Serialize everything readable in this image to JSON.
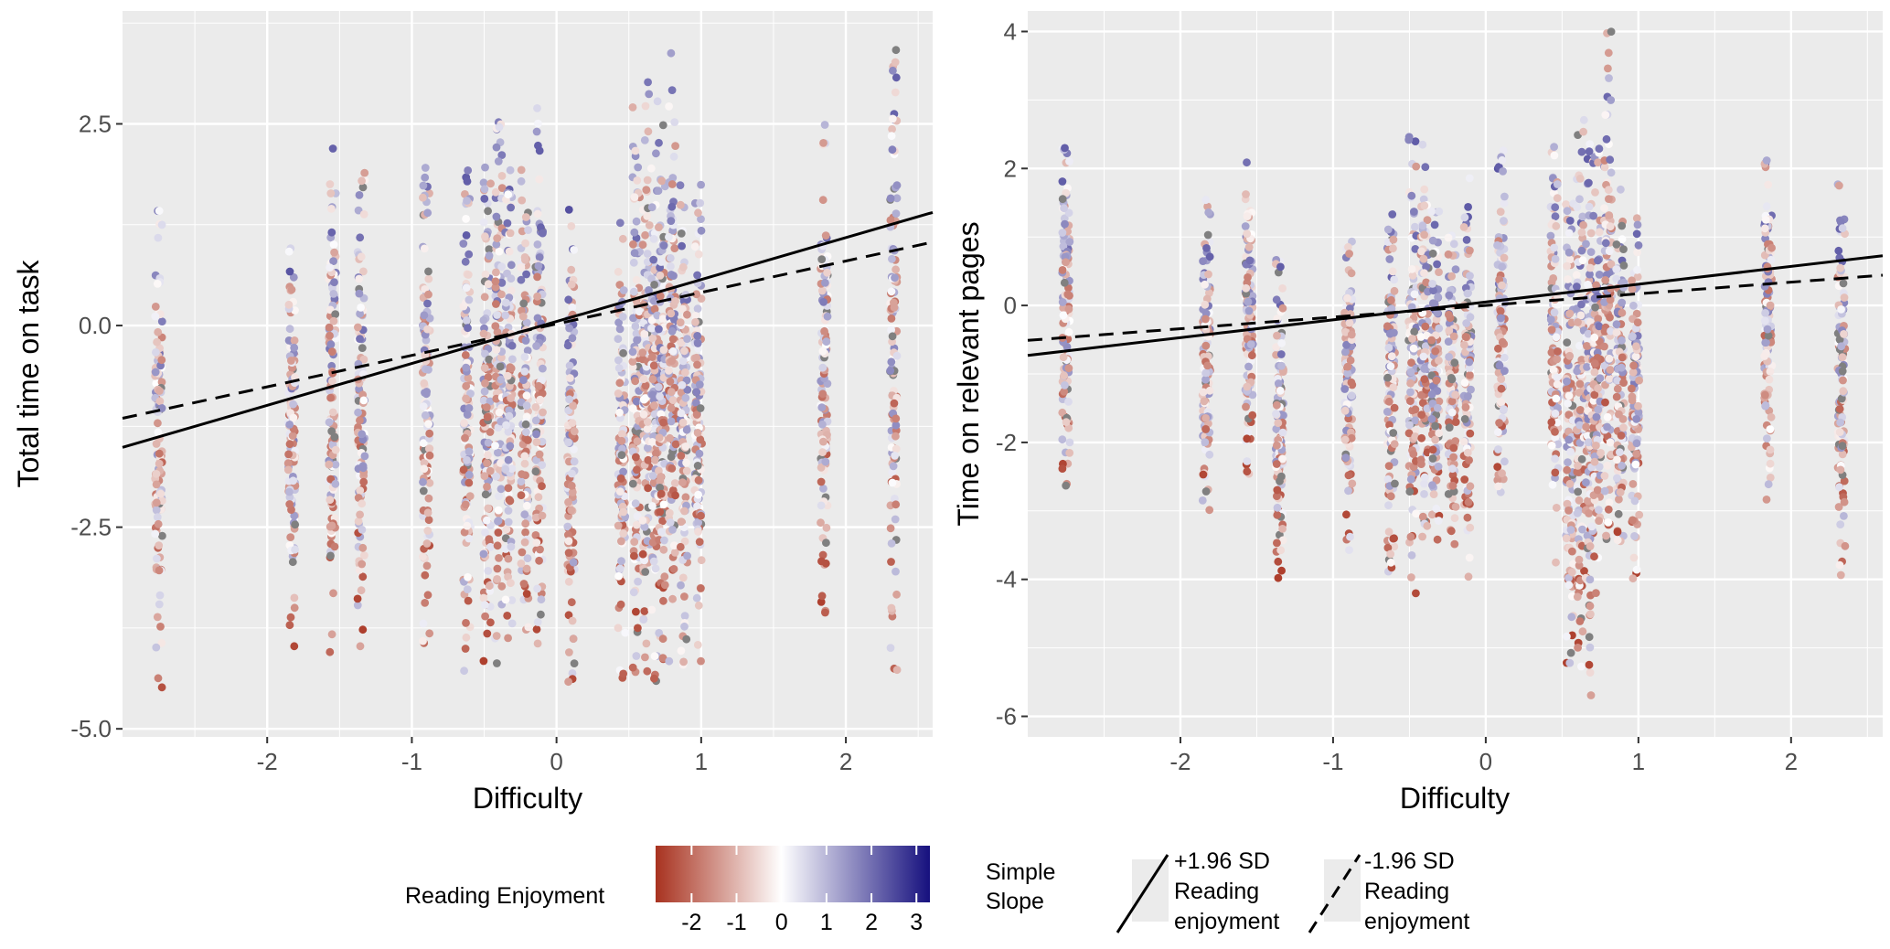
{
  "chart_data": [
    {
      "type": "scatter",
      "panel": "left",
      "xlabel": "Difficulty",
      "ylabel": "Total time on task",
      "xlim": [
        -3.0,
        2.6
      ],
      "ylim": [
        -5.1,
        3.9
      ],
      "xticks": [
        -2,
        -1,
        0,
        1,
        2
      ],
      "xtick_labels": [
        "-2",
        "-1",
        "0",
        "1",
        "2"
      ],
      "yticks": [
        2.5,
        0.0,
        -2.5,
        -5.0
      ],
      "ytick_labels": [
        "2.5",
        "0.0",
        "-2.5",
        "-5.0"
      ],
      "grid": true,
      "item_difficulties": [
        -2.75,
        -1.83,
        -1.55,
        -1.35,
        -0.9,
        -0.62,
        -0.48,
        -0.4,
        -0.33,
        -0.22,
        -0.12,
        0.1,
        0.45,
        0.55,
        0.62,
        0.68,
        0.73,
        0.8,
        0.88,
        0.98,
        1.85,
        2.33
      ],
      "column_ranges": [
        [
          -4.5,
          1.6
        ],
        [
          -4.0,
          1.0
        ],
        [
          -4.2,
          2.2
        ],
        [
          -4.0,
          1.9
        ],
        [
          -4.1,
          2.0
        ],
        [
          -4.3,
          2.1
        ],
        [
          -4.3,
          2.0
        ],
        [
          -4.2,
          2.8
        ],
        [
          -4.3,
          2.0
        ],
        [
          -4.1,
          2.0
        ],
        [
          -4.2,
          2.7
        ],
        [
          -4.5,
          1.5
        ],
        [
          -4.4,
          1.4
        ],
        [
          -4.3,
          2.9
        ],
        [
          -4.3,
          3.1
        ],
        [
          -4.5,
          3.0
        ],
        [
          -4.2,
          2.5
        ],
        [
          -4.2,
          3.4
        ],
        [
          -4.3,
          1.9
        ],
        [
          -4.6,
          1.9
        ],
        [
          -3.8,
          2.5
        ],
        [
          -4.3,
          3.6
        ]
      ],
      "lines": [
        {
          "name": "+1.96 SD Reading enjoyment",
          "style": "solid",
          "intercept": 0.05,
          "slope": 0.52
        },
        {
          "name": "-1.96 SD Reading enjoyment",
          "style": "dashed",
          "intercept": 0.02,
          "slope": 0.39
        }
      ]
    },
    {
      "type": "scatter",
      "panel": "right",
      "xlabel": "Difficulty",
      "ylabel": "Time on relevant pages",
      "xlim": [
        -3.0,
        2.6
      ],
      "ylim": [
        -6.3,
        4.3
      ],
      "xticks": [
        -2,
        -1,
        0,
        1,
        2
      ],
      "xtick_labels": [
        "-2",
        "-1",
        "0",
        "1",
        "2"
      ],
      "yticks": [
        4,
        2,
        0,
        -2,
        -4,
        -6
      ],
      "ytick_labels": [
        "4",
        "2",
        "0",
        "-2",
        "-4",
        "-6"
      ],
      "grid": true,
      "item_difficulties": [
        -2.75,
        -1.83,
        -1.55,
        -1.35,
        -0.9,
        -0.62,
        -0.48,
        -0.4,
        -0.33,
        -0.22,
        -0.12,
        0.1,
        0.45,
        0.55,
        0.62,
        0.68,
        0.73,
        0.8,
        0.88,
        0.98,
        1.85,
        2.33
      ],
      "column_ranges": [
        [
          -2.8,
          2.3
        ],
        [
          -3.1,
          1.6
        ],
        [
          -2.6,
          2.1
        ],
        [
          -4.2,
          0.8
        ],
        [
          -3.6,
          1.2
        ],
        [
          -4.0,
          1.6
        ],
        [
          -4.5,
          2.5
        ],
        [
          -3.4,
          2.4
        ],
        [
          -3.6,
          1.5
        ],
        [
          -3.8,
          1.3
        ],
        [
          -4.0,
          1.9
        ],
        [
          -2.9,
          2.4
        ],
        [
          -3.8,
          2.5
        ],
        [
          -5.3,
          1.6
        ],
        [
          -5.6,
          2.8
        ],
        [
          -5.7,
          2.6
        ],
        [
          -4.2,
          2.3
        ],
        [
          -3.7,
          4.0
        ],
        [
          -3.6,
          1.7
        ],
        [
          -4.0,
          1.3
        ],
        [
          -3.0,
          2.5
        ],
        [
          -4.0,
          1.9
        ]
      ],
      "lines": [
        {
          "name": "+1.96 SD Reading enjoyment",
          "style": "solid",
          "intercept": 0.05,
          "slope": 0.26
        },
        {
          "name": "-1.96 SD Reading enjoyment",
          "style": "dashed",
          "intercept": 0.0,
          "slope": 0.17
        }
      ]
    }
  ],
  "legend": {
    "colorbar": {
      "title": "Reading Enjoyment",
      "min": -2.8,
      "max": 3.3,
      "ticks": [
        -2,
        -1,
        0,
        1,
        2,
        3
      ],
      "tick_labels": [
        "-2",
        "-1",
        "0",
        "1",
        "2",
        "3"
      ],
      "low_color": "#a8321f",
      "mid_color": "#ffffff",
      "high_color": "#16107e"
    },
    "slope": {
      "title_line1": "Simple",
      "title_line2": "Slope",
      "items": [
        {
          "line1": "+1.96 SD",
          "line2": "Reading",
          "line3": "enjoyment",
          "style": "solid"
        },
        {
          "line1": "-1.96 SD",
          "line2": "Reading",
          "line3": "enjoyment",
          "style": "dashed"
        }
      ]
    }
  },
  "colors": {
    "panel_bg": "#ebebeb",
    "grid_major": "#ffffff",
    "missing_point": "#808080",
    "line": "#000000"
  }
}
